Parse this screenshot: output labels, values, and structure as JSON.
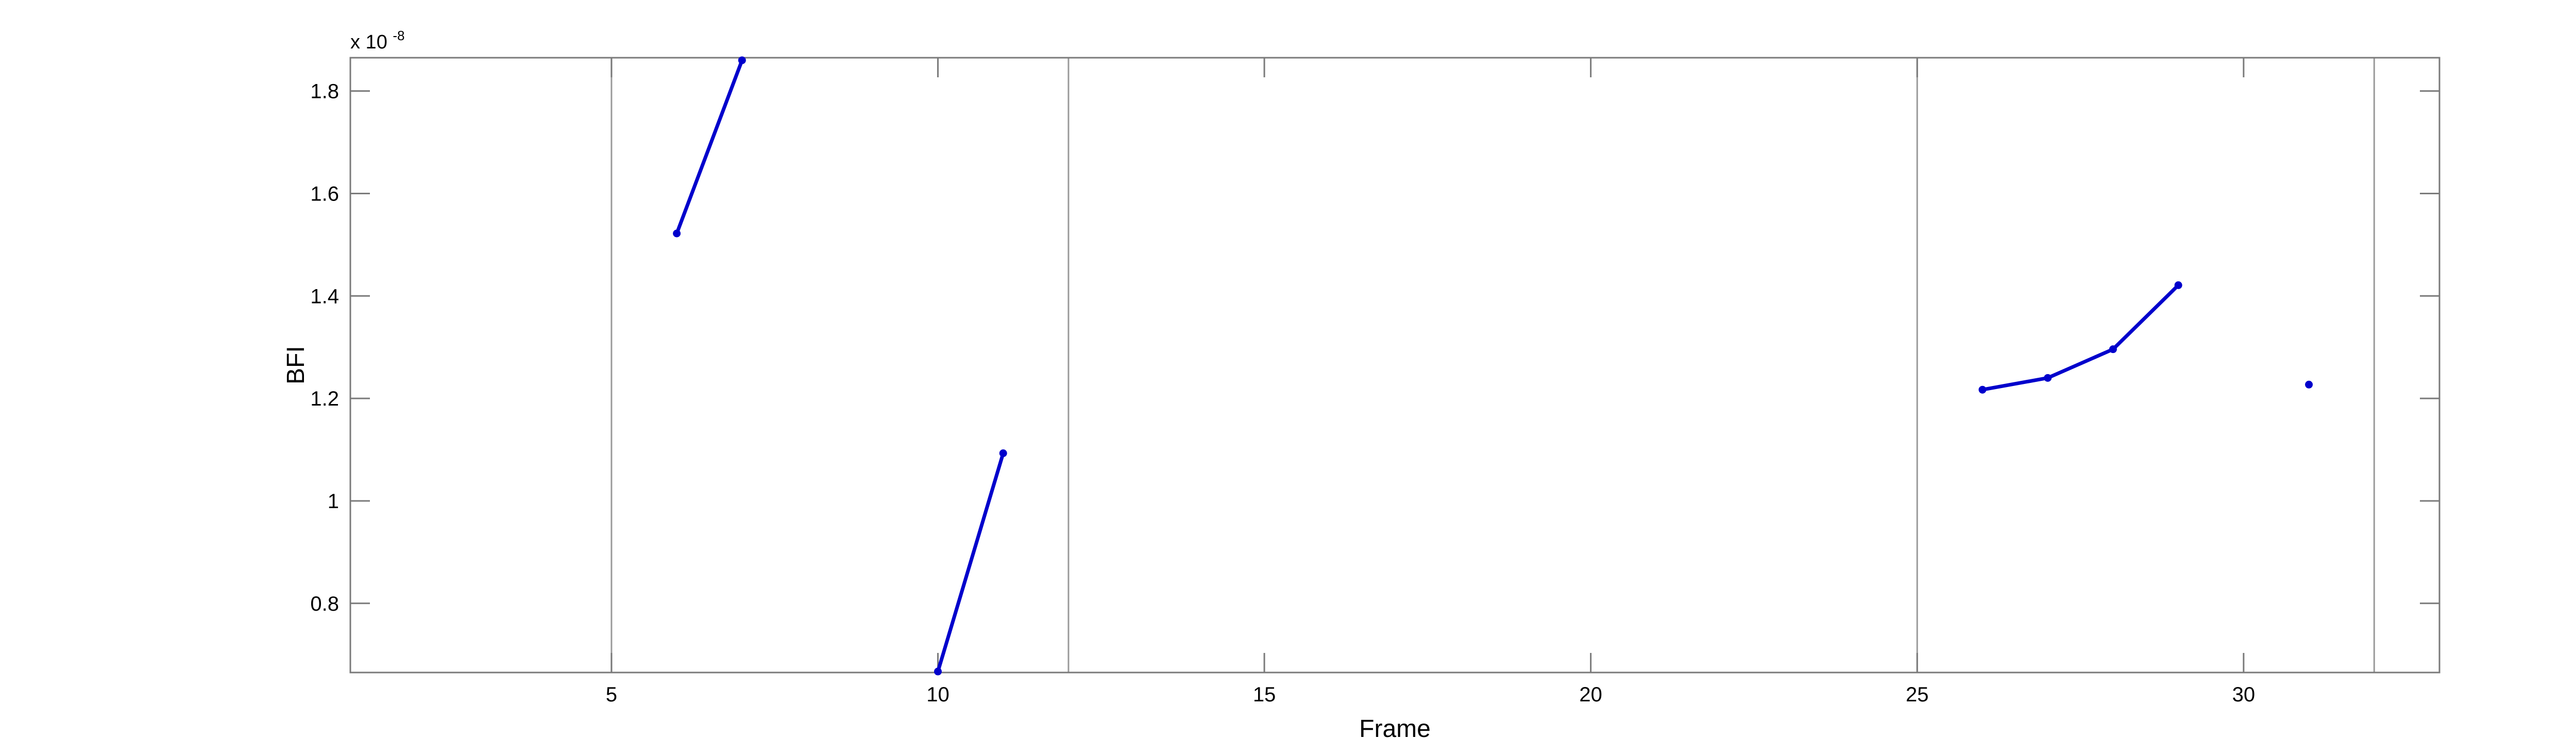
{
  "chart_data": {
    "type": "line",
    "title": "",
    "xlabel": "Frame",
    "ylabel": "BFI",
    "y_exponent_base": "x 10",
    "y_exponent_power": "-8",
    "xlim": [
      1,
      33
    ],
    "ylim": [
      0.665,
      1.865
    ],
    "xticks": [
      5,
      10,
      15,
      20,
      25,
      30
    ],
    "xtick_labels": [
      "5",
      "10",
      "15",
      "20",
      "25",
      "30"
    ],
    "yticks": [
      0.8,
      1.0,
      1.2,
      1.4,
      1.6,
      1.8
    ],
    "ytick_labels": [
      "0.8",
      "1",
      "1.2",
      "1.4",
      "1.6",
      "1.8"
    ],
    "grid": false,
    "vertical_lines": [
      5,
      12,
      25,
      32
    ],
    "colors": {
      "series": "#0000cc",
      "vertical_lines": "#9a9a9a",
      "axes": "#7a7a7a"
    },
    "segments": [
      {
        "x": [
          6,
          7
        ],
        "y": [
          1.522,
          1.86
        ]
      },
      {
        "x": [
          10,
          11
        ],
        "y": [
          0.667,
          1.093
        ]
      },
      {
        "x": [
          26,
          27,
          28,
          29
        ],
        "y": [
          1.217,
          1.24,
          1.296,
          1.421
        ]
      },
      {
        "x": [
          31
        ],
        "y": [
          1.227
        ]
      }
    ]
  }
}
